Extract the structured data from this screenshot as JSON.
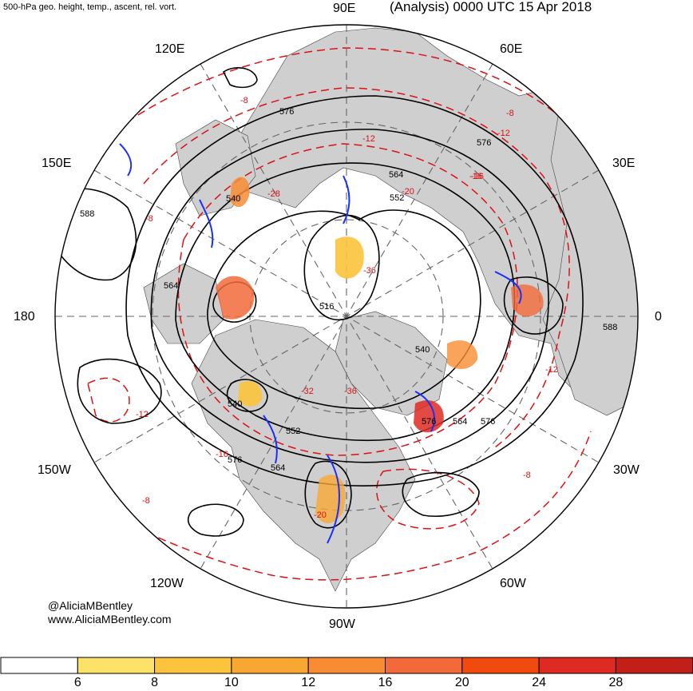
{
  "title": {
    "left": "500-hPa geo. height, temp., ascent, rel. vort.",
    "right": "(Analysis) 0000 UTC 15 Apr 2018"
  },
  "longitude_labels": {
    "e90": "90E",
    "e120": "120E",
    "e60": "60E",
    "e150": "150E",
    "e30": "30E",
    "d180": "180",
    "d0": "0",
    "w150": "150W",
    "w30": "30W",
    "w120": "120W",
    "w60": "60W",
    "w90": "90W"
  },
  "credit": {
    "handle": "@AliciaMBentley",
    "site": "www.AliciaMBentley.com"
  },
  "contour_labels": {
    "height": [
      "576",
      "576",
      "564",
      "552",
      "540",
      "564",
      "516",
      "540",
      "540",
      "552",
      "564",
      "576",
      "576",
      "588",
      "588",
      "564",
      "576"
    ],
    "temperature": [
      "-8",
      "-12",
      "-8",
      "-16",
      "-20",
      "-28",
      "-36",
      "-12",
      "-16",
      "-8",
      "-8",
      "-12",
      "-16",
      "-20",
      "-32",
      "-36",
      "-12",
      "-8"
    ]
  },
  "colorbar": {
    "ticks": [
      "6",
      "8",
      "10",
      "12",
      "16",
      "20",
      "24",
      "28"
    ],
    "colors": [
      "#ffffff",
      "#fde26a",
      "#fcc33c",
      "#f9a733",
      "#f78c32",
      "#f26a3a",
      "#f14a0e",
      "#dd2a22",
      "#c11f18"
    ]
  },
  "colors": {
    "land": "#cfcfcf",
    "height_contour": "#000000",
    "temp_contour": "#dd1111",
    "vorticity": "#1530ff",
    "grid": "#666666"
  }
}
